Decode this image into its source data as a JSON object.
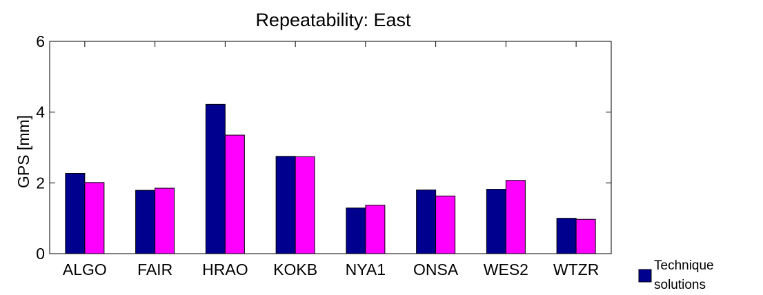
{
  "chart_data": {
    "type": "bar",
    "title": "Repeatability: East",
    "xlabel": "",
    "ylabel": "GPS [mm]",
    "ylim": [
      0,
      6
    ],
    "yticks": [
      0,
      2,
      4,
      6
    ],
    "categories": [
      "ALGO",
      "FAIR",
      "HRAO",
      "KOKB",
      "NYA1",
      "ONSA",
      "WES2",
      "WTZR"
    ],
    "series": [
      {
        "color": "#00008f",
        "values": [
          2.27,
          1.79,
          4.22,
          2.75,
          1.29,
          1.8,
          1.82,
          1.0
        ]
      },
      {
        "color": "#ff00ff",
        "values": [
          2.01,
          1.85,
          3.35,
          2.74,
          1.37,
          1.63,
          2.07,
          0.97
        ]
      }
    ],
    "legend": {
      "position": "bottom-right",
      "entries": [
        {
          "line1": "Technique",
          "line2": "solutions",
          "color": "#00008f"
        }
      ]
    }
  }
}
